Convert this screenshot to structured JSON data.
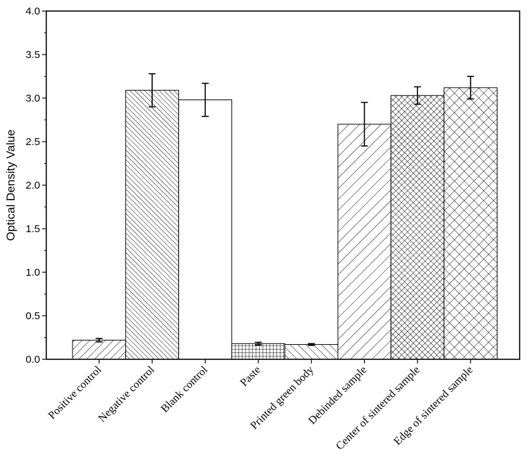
{
  "chart_data": {
    "type": "bar",
    "title": "",
    "xlabel": "",
    "ylabel": "Optical Density Value",
    "ylim": [
      0.0,
      4.0
    ],
    "yticks": [
      "0.0",
      "0.5",
      "1.0",
      "1.5",
      "2.0",
      "2.5",
      "3.0",
      "3.5",
      "4.0"
    ],
    "grid": false,
    "legend": "none",
    "categories": [
      "Positive control",
      "Negative control",
      "Blank control",
      "Paste",
      "Printed green body",
      "Debinded sample",
      "Center of sintered sample",
      "Edge of sintered sample"
    ],
    "values": [
      0.22,
      3.09,
      2.98,
      0.18,
      0.17,
      2.7,
      3.03,
      3.12
    ],
    "errors": [
      0.02,
      0.19,
      0.19,
      0.015,
      0.01,
      0.25,
      0.1,
      0.13
    ],
    "patterns": [
      "diag-right-sparse",
      "diag-left-dense",
      "none",
      "grid",
      "diag-left-sparse",
      "diag-right-wide",
      "crosshatch-dense",
      "crosshatch-wide"
    ],
    "bar_fill": "#ffffff",
    "stroke": "#000000"
  }
}
